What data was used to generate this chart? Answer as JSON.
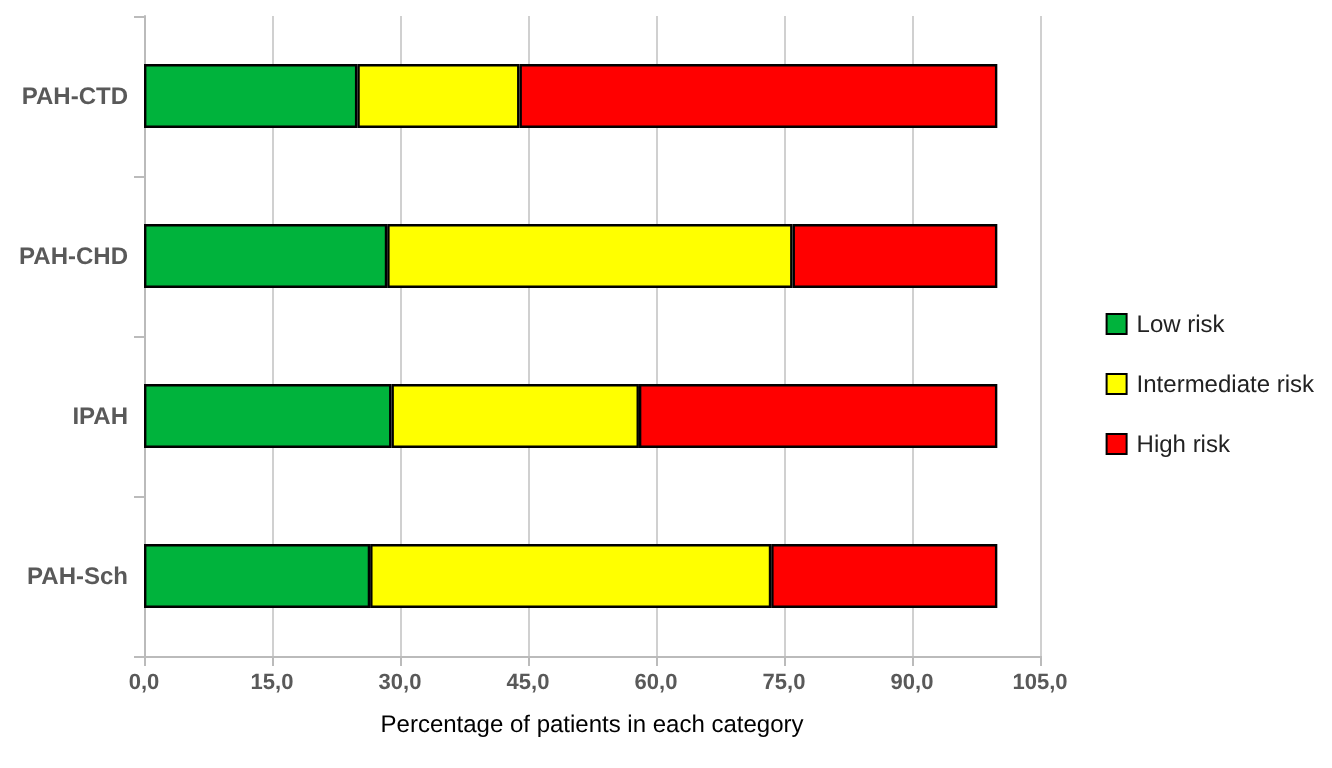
{
  "chart_data": {
    "type": "bar",
    "orientation": "horizontal",
    "stacked": true,
    "xlabel": "Percentage of patients in each category",
    "categories": [
      "PAH-CTD",
      "PAH-CHD",
      "IPAH",
      "PAH-Sch"
    ],
    "series": [
      {
        "name": "Low risk",
        "color": "#00b33c",
        "values": [
          25,
          28.5,
          29,
          26.5
        ]
      },
      {
        "name": "Intermediate risk",
        "color": "#ffff00",
        "values": [
          19,
          47.5,
          29,
          47
        ]
      },
      {
        "name": "High risk",
        "color": "#ff0000",
        "values": [
          56,
          24,
          42,
          26.5
        ]
      }
    ],
    "xlim": [
      0,
      105
    ],
    "xticks": [
      {
        "value": 0,
        "label": "0,0"
      },
      {
        "value": 15,
        "label": "15,0"
      },
      {
        "value": 30,
        "label": "30,0"
      },
      {
        "value": 45,
        "label": "45,0"
      },
      {
        "value": 60,
        "label": "60,0"
      },
      {
        "value": 75,
        "label": "75,0"
      },
      {
        "value": 90,
        "label": "90,0"
      },
      {
        "value": 105,
        "label": "105,0"
      }
    ],
    "grid": "x",
    "legend": "right"
  }
}
